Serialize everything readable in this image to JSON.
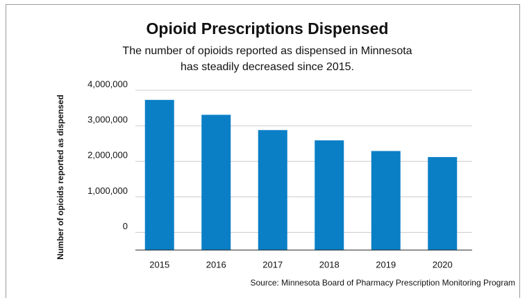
{
  "chart_data": {
    "type": "bar",
    "title": "Opioid Prescriptions Dispensed",
    "subtitle": [
      "The number of opioids reported as dispensed in Minnesota",
      "has steadily decreased since 2015."
    ],
    "y_label": "Number of opioids reported as dispensed",
    "source": "Source: Minnesota Board of Pharmacy Prescription Monitoring Program",
    "categories": [
      "2015",
      "2016",
      "2017",
      "2018",
      "2019",
      "2020"
    ],
    "values": [
      3730000,
      3310000,
      2880000,
      2590000,
      2290000,
      2120000
    ],
    "color": "#0a7fc6",
    "ylim": [
      -500000,
      4000000
    ],
    "yticks": [
      0,
      {
        "value": 1000000,
        "label": "1,000,000"
      },
      {
        "value": 2000000,
        "label": "2,000,000"
      },
      {
        "value": 3000000,
        "label": "3,000,000"
      },
      {
        "value": 4000000,
        "label": "4,000,000"
      }
    ],
    "grid": true
  }
}
